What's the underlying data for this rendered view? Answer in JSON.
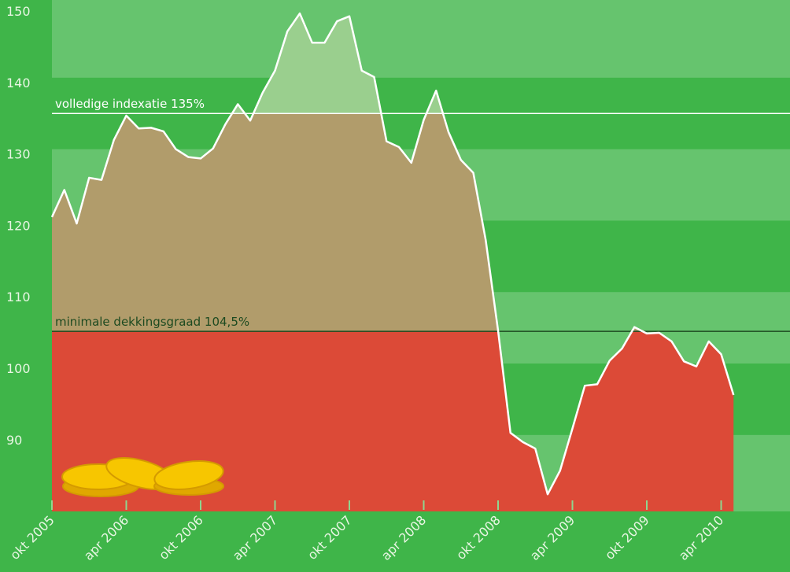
{
  "chart_data": {
    "type": "area",
    "x": [
      "2005-10",
      "2005-11",
      "2005-12",
      "2006-01",
      "2006-02",
      "2006-03",
      "2006-04",
      "2006-05",
      "2006-06",
      "2006-07",
      "2006-08",
      "2006-09",
      "2006-10",
      "2006-11",
      "2006-12",
      "2007-01",
      "2007-02",
      "2007-03",
      "2007-04",
      "2007-05",
      "2007-06",
      "2007-07",
      "2007-08",
      "2007-09",
      "2007-10",
      "2007-11",
      "2007-12",
      "2008-01",
      "2008-02",
      "2008-03",
      "2008-04",
      "2008-05",
      "2008-06",
      "2008-07",
      "2008-08",
      "2008-09",
      "2008-10",
      "2008-11",
      "2008-12",
      "2009-01",
      "2009-02",
      "2009-03",
      "2009-04",
      "2009-05",
      "2009-06",
      "2009-07",
      "2009-08",
      "2009-09",
      "2009-10",
      "2009-11",
      "2009-12",
      "2010-01",
      "2010-02",
      "2010-03",
      "2010-04",
      "2010-05"
    ],
    "values": [
      120.5,
      124.3,
      119.6,
      126.0,
      125.7,
      131.3,
      134.7,
      132.9,
      133.0,
      132.5,
      130.0,
      128.9,
      128.7,
      130.1,
      133.5,
      136.3,
      134.0,
      137.9,
      141.0,
      146.5,
      149.0,
      144.9,
      144.9,
      147.9,
      148.6,
      141.0,
      140.1,
      131.1,
      130.3,
      128.1,
      134.1,
      138.2,
      132.4,
      128.5,
      126.7,
      117.3,
      104.6,
      90.3,
      89.0,
      88.1,
      81.7,
      85.0,
      90.9,
      96.9,
      97.1,
      100.4,
      102.1,
      105.1,
      104.2,
      104.3,
      103.1,
      100.3,
      99.6,
      103.1,
      101.3,
      95.6
    ],
    "ylim": [
      79.3,
      150
    ],
    "yticks": [
      150,
      140,
      130,
      120,
      110,
      100,
      90
    ],
    "xticks": [
      {
        "value": "2005-10",
        "label": "okt 2005"
      },
      {
        "value": "2006-04",
        "label": "apr 2006"
      },
      {
        "value": "2006-10",
        "label": "okt 2006"
      },
      {
        "value": "2007-04",
        "label": "apr 2007"
      },
      {
        "value": "2007-10",
        "label": "okt 2007"
      },
      {
        "value": "2008-04",
        "label": "apr 2008"
      },
      {
        "value": "2008-10",
        "label": "okt 2008"
      },
      {
        "value": "2009-04",
        "label": "apr 2009"
      },
      {
        "value": "2009-10",
        "label": "okt 2009"
      },
      {
        "value": "2010-04",
        "label": "apr 2010"
      }
    ],
    "reference_lines": [
      {
        "value": 135,
        "label": "volledige indexatie 135%",
        "color": "#ffffff"
      },
      {
        "value": 104.5,
        "label": "minimale dekkingsgraad 104,5%",
        "color": "#1d4a20"
      }
    ],
    "colors": {
      "line": "#ffffff",
      "above": "#9acf8e",
      "between": "#b19c6b",
      "below": "#dc4a37",
      "band": "#66c46e"
    }
  }
}
